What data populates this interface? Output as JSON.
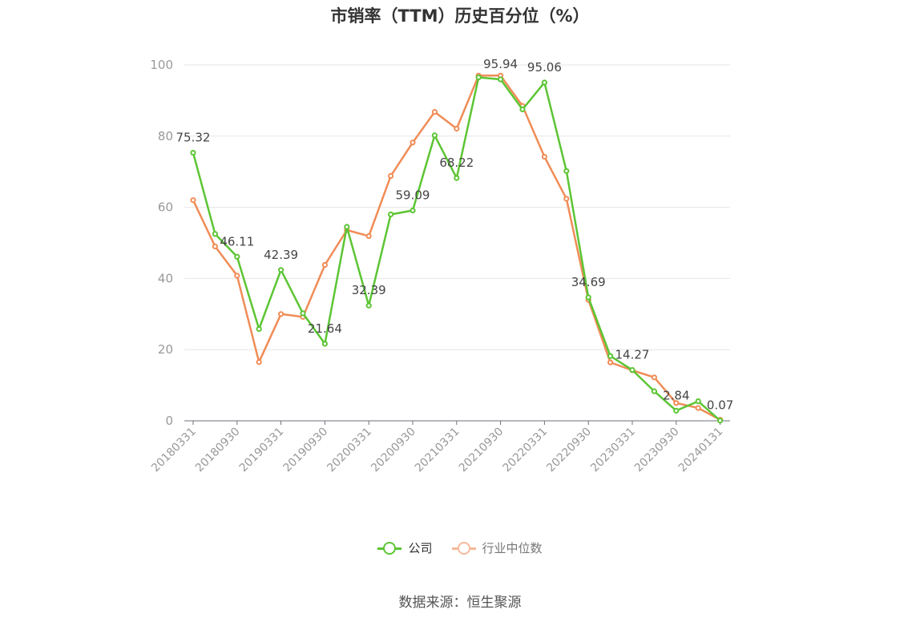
{
  "title": "市销率（TTM）历史百分位（%）",
  "source": "数据来源：恒生聚源",
  "chart_data": {
    "type": "line",
    "title": "市销率（TTM）历史百分位（%）",
    "ylim": [
      0,
      100
    ],
    "y_ticks": [
      "0",
      "20",
      "40",
      "60",
      "80",
      "100"
    ],
    "x_ticks": [
      "20180331",
      "20180930",
      "20190331",
      "20190930",
      "20200331",
      "20200930",
      "20210331",
      "20210930",
      "20220331",
      "20220930",
      "20230331",
      "20230930",
      "20240131"
    ],
    "grid": true,
    "legend_position": "bottom",
    "series": [
      {
        "name": "公司",
        "color": "#5cc534",
        "values": [
          75.32,
          52.5,
          46.11,
          25.8,
          42.39,
          30.2,
          21.64,
          54.5,
          32.39,
          58.0,
          59.09,
          80.2,
          68.22,
          96.5,
          95.94,
          87.5,
          95.06,
          70.2,
          34.69,
          18.2,
          14.27,
          8.3,
          2.84,
          5.5,
          0.07
        ],
        "labels": [
          "75.32",
          "",
          "46.11",
          "",
          "42.39",
          "",
          "21.64",
          "",
          "32.39",
          "",
          "59.09",
          "",
          "68.22",
          "",
          "95.94",
          "",
          "95.06",
          "",
          "34.69",
          "",
          "14.27",
          "",
          "2.84",
          "",
          "0.07"
        ]
      },
      {
        "name": "行业中位数",
        "color": "#f08c57",
        "values": [
          62.0,
          49.0,
          40.8,
          16.5,
          30.0,
          29.2,
          43.8,
          53.6,
          51.9,
          68.8,
          78.2,
          86.8,
          82.1,
          97.0,
          97.0,
          88.5,
          74.2,
          62.4,
          34.0,
          16.4,
          14.2,
          12.2,
          5.0,
          3.6,
          0.3
        ]
      }
    ]
  },
  "legend": [
    {
      "label": "公司",
      "color": "#5cc534"
    },
    {
      "label": "行业中位数",
      "color": "#f5b99a"
    }
  ]
}
